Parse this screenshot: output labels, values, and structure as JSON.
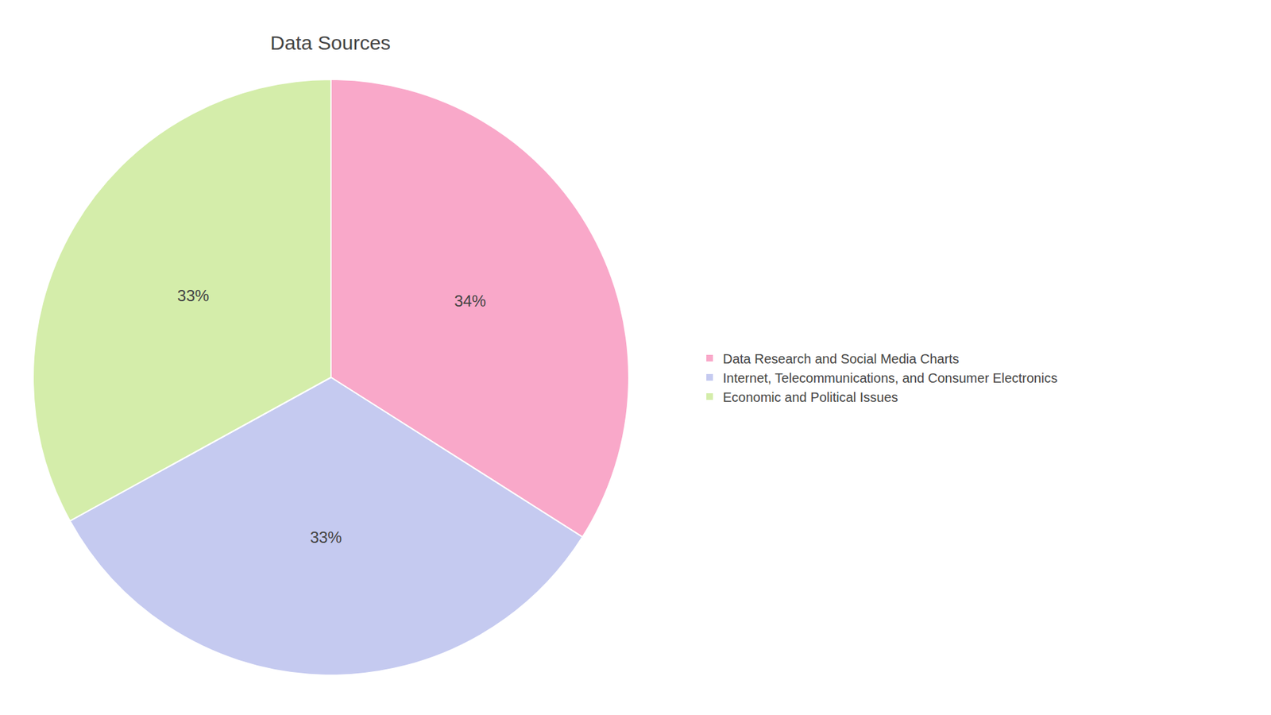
{
  "chart_data": {
    "type": "pie",
    "title": "Data Sources",
    "categories": [
      "Data Research and Social Media Charts",
      "Internet, Telecommunications, and Consumer Electronics",
      "Economic and Political Issues"
    ],
    "values": [
      34,
      33,
      33
    ],
    "value_labels": [
      "34%",
      "33%",
      "33%"
    ],
    "colors": [
      "#F9A8C9",
      "#C5CAF0",
      "#D4EDAA"
    ],
    "data_labels": true,
    "legend": "right"
  }
}
